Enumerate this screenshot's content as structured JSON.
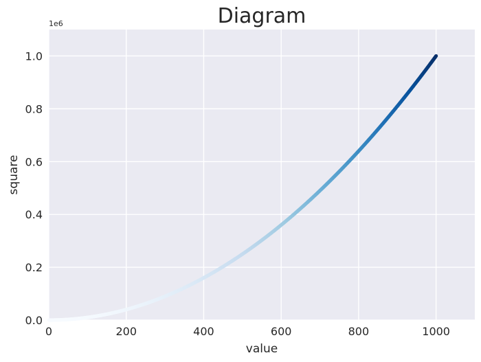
{
  "chart_data": {
    "type": "scatter",
    "title": "Diagram",
    "xlabel": "value",
    "ylabel": "square",
    "y_offset_label": "1e6",
    "xlim": [
      0,
      1100
    ],
    "ylim": [
      0,
      1.1
    ],
    "x_ticks": [
      0,
      200,
      400,
      600,
      800,
      1000
    ],
    "x_tick_labels": [
      "0",
      "200",
      "400",
      "600",
      "800",
      "1000"
    ],
    "y_ticks": [
      0,
      0.2,
      0.4,
      0.6,
      0.8,
      1.0
    ],
    "y_tick_labels": [
      "0.0",
      "0.2",
      "0.4",
      "0.6",
      "0.8",
      "1.0"
    ],
    "grid": true,
    "colormap": "Blues",
    "colormap_stops": [
      "#f7fbff",
      "#deebf7",
      "#c6dbef",
      "#9ecae1",
      "#6baed6",
      "#4292c6",
      "#2171b5",
      "#08519c",
      "#08306b"
    ],
    "series": [
      {
        "x_start": 1,
        "x_end": 1000,
        "x_step": 1,
        "y_function": "x^2"
      }
    ]
  }
}
